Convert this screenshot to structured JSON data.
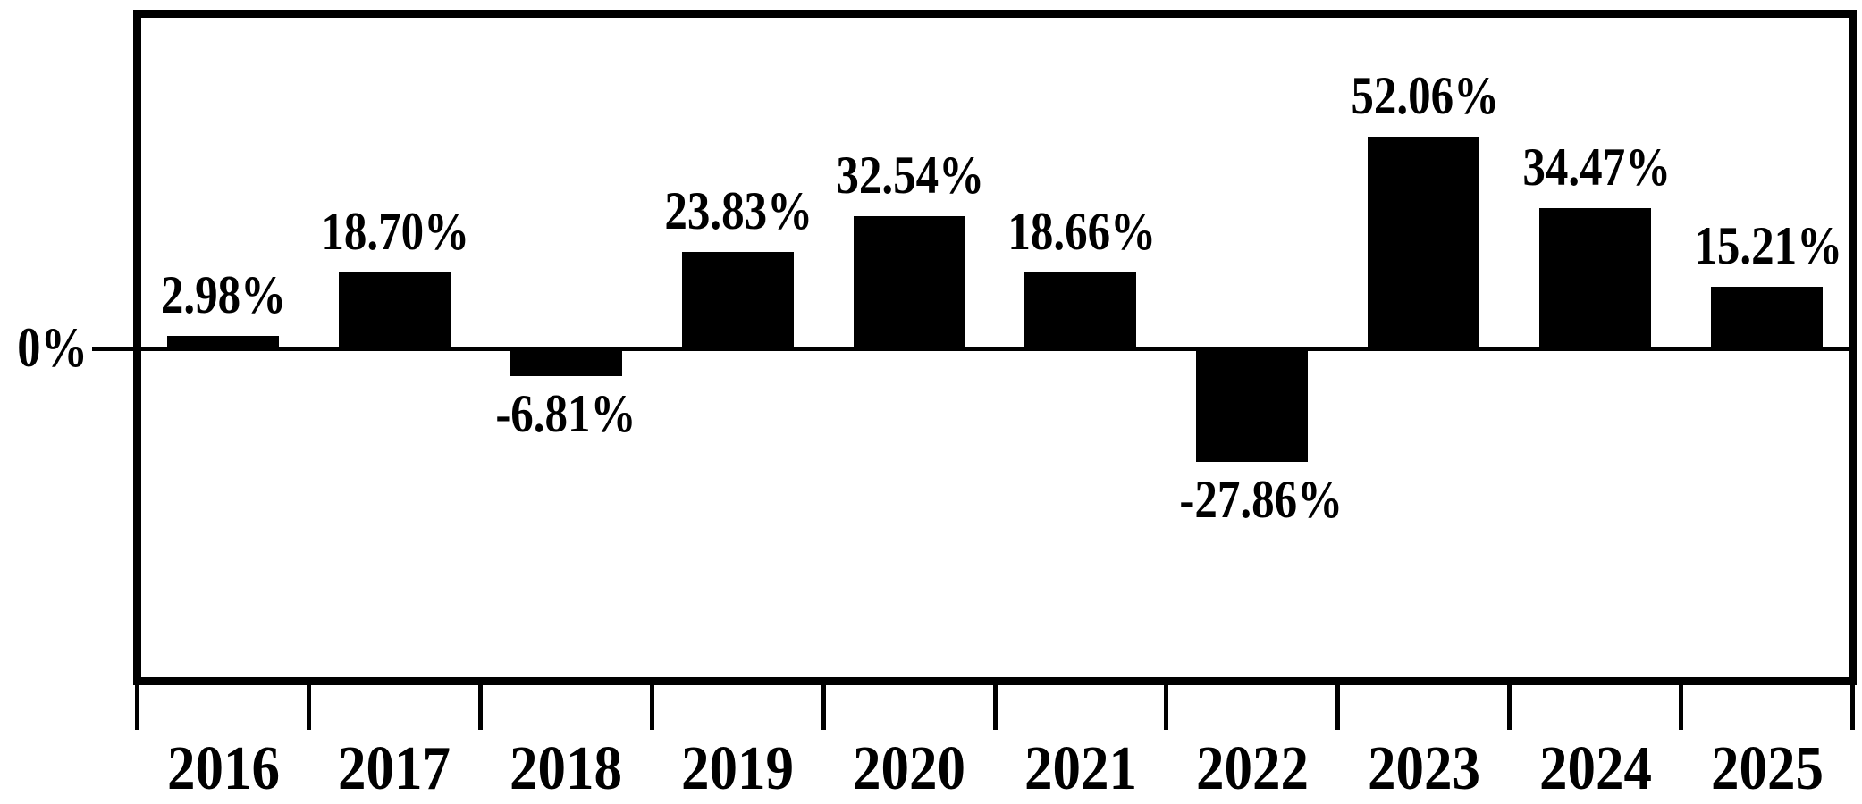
{
  "chart_data": {
    "type": "bar",
    "title": "",
    "xlabel": "",
    "ylabel": "",
    "categories": [
      "2016",
      "2017",
      "2018",
      "2019",
      "2020",
      "2021",
      "2022",
      "2023",
      "2024",
      "2025"
    ],
    "values": [
      2.98,
      18.7,
      -6.81,
      23.83,
      32.54,
      18.66,
      -27.86,
      52.06,
      34.47,
      15.21
    ],
    "value_labels": [
      "2.98%",
      "18.70%",
      "-6.81%",
      "23.83%",
      "32.54%",
      "18.66%",
      "-27.86%",
      "52.06%",
      "34.47%",
      "15.21%"
    ],
    "y_axis": {
      "zero_label": "0%",
      "visible_tick_labels": [
        "0%"
      ],
      "ylim": [
        -81,
        81
      ],
      "gridlines": false
    },
    "legend": false,
    "bar_color": "#000000",
    "background_color": "#ffffff",
    "axis_color": "#000000"
  }
}
